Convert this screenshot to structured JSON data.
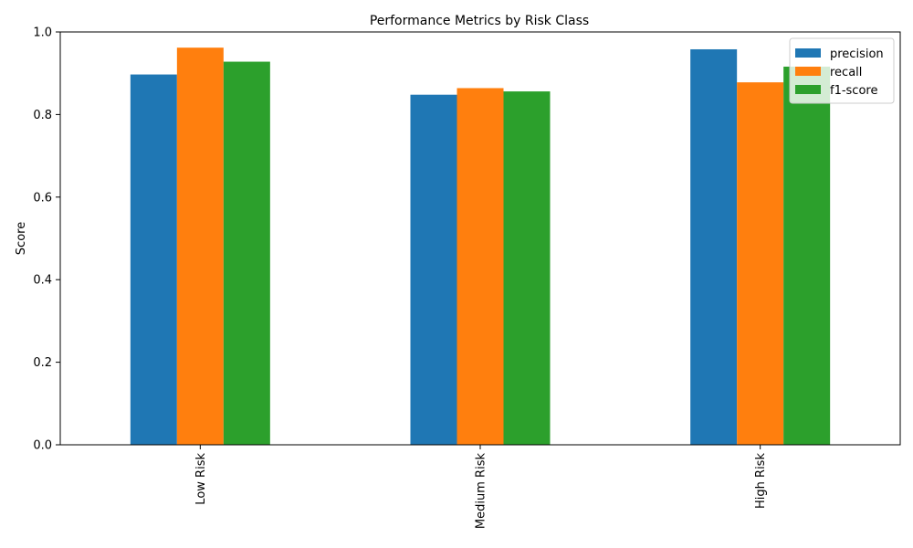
{
  "chart_data": {
    "type": "bar",
    "title": "Performance Metrics by Risk Class",
    "xlabel": "",
    "ylabel": "Score",
    "categories": [
      "Low Risk",
      "Medium Risk",
      "High Risk"
    ],
    "series": [
      {
        "name": "precision",
        "color": "#1f77b4",
        "values": [
          0.897,
          0.848,
          0.958
        ]
      },
      {
        "name": "recall",
        "color": "#ff7f0e",
        "values": [
          0.962,
          0.864,
          0.878
        ]
      },
      {
        "name": "f1-score",
        "color": "#2ca02c",
        "values": [
          0.928,
          0.856,
          0.916
        ]
      }
    ],
    "ylim": [
      0,
      1.0
    ],
    "yticks": [
      "0.0",
      "0.2",
      "0.4",
      "0.6",
      "0.8",
      "1.0"
    ],
    "yticks_values": [
      0,
      0.2,
      0.4,
      0.6,
      0.8,
      1.0
    ],
    "grid": false,
    "legend_position": "top-right"
  }
}
